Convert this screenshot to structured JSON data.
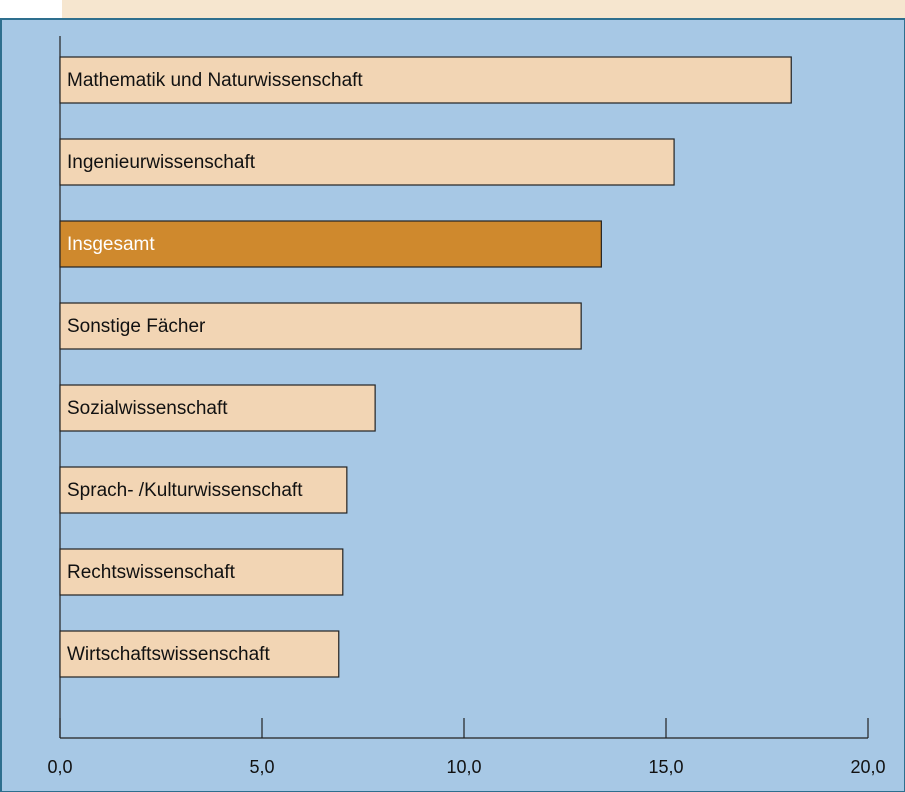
{
  "chart_data": {
    "type": "barh",
    "categories": [
      "Mathematik und Naturwissenschaft",
      "Ingenieurwissenschaft",
      "Insgesamt",
      "Sonstige Fächer",
      "Sozialwissenschaft",
      "Sprach- /Kulturwissenschaft",
      "Rechtswissenschaft",
      "Wirtschaftswissenschaft"
    ],
    "values": [
      18.1,
      15.2,
      13.4,
      12.9,
      7.8,
      7.1,
      7.0,
      6.9
    ],
    "colors": [
      "#f2d5b4",
      "#f2d5b4",
      "#cf892d",
      "#f2d5b4",
      "#f2d5b4",
      "#f2d5b4",
      "#f2d5b4",
      "#f2d5b4"
    ],
    "xlim": [
      0,
      20
    ],
    "xticks": [
      {
        "value": 0,
        "label": "0,0"
      },
      {
        "value": 5,
        "label": "5,0"
      },
      {
        "value": 10,
        "label": "10,0"
      },
      {
        "value": 15,
        "label": "15,0"
      },
      {
        "value": 20,
        "label": "20,0"
      }
    ]
  }
}
